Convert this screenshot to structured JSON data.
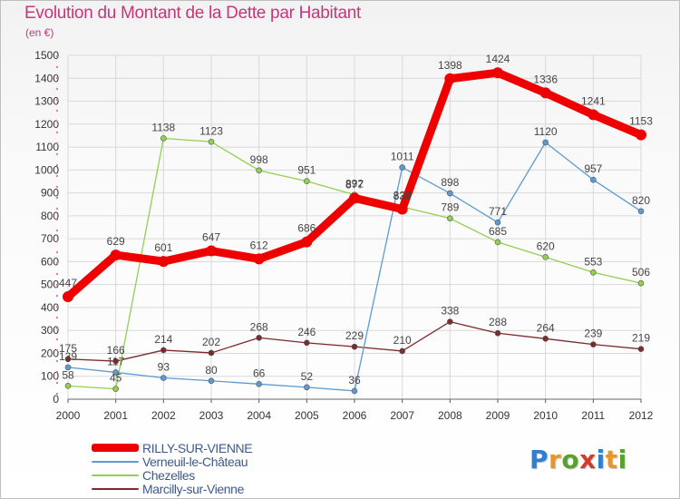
{
  "title": "Evolution du Montant de la Dette par Habitant",
  "unit": "(en €)",
  "brand": {
    "text": "Proxiti",
    "letter_colors": [
      "#2f7fd0",
      "#e8962a",
      "#5aa02c",
      "#d33c2c",
      "#2f7fd0",
      "#e8962a",
      "#5aa02c"
    ]
  },
  "chart_data": {
    "type": "line",
    "x": [
      "2000",
      "2001",
      "2002",
      "2003",
      "2004",
      "2005",
      "2006",
      "2007",
      "2008",
      "2009",
      "2010",
      "2011",
      "2012"
    ],
    "ylim": [
      0,
      1500
    ],
    "yticks": [
      0,
      100,
      200,
      300,
      400,
      500,
      600,
      700,
      800,
      900,
      1000,
      1100,
      1200,
      1300,
      1400,
      1500
    ],
    "grid": true,
    "legend_position": "bottom-left",
    "series": [
      {
        "name": "RILLY-SUR-VIENNE",
        "color": "#ee0000",
        "values": [
          447,
          629,
          601,
          647,
          612,
          686,
          877,
          829,
          1398,
          1424,
          1336,
          1241,
          1153
        ]
      },
      {
        "name": "Verneuil-le-Château",
        "color": "#5b9bd5",
        "values": [
          139,
          117,
          93,
          80,
          66,
          52,
          36,
          1011,
          898,
          771,
          1120,
          957,
          820
        ]
      },
      {
        "name": "Chezelles",
        "color": "#92d050",
        "values": [
          58,
          45,
          1138,
          1123,
          998,
          951,
          892,
          839,
          789,
          685,
          620,
          553,
          506
        ]
      },
      {
        "name": "Marcilly-sur-Vienne",
        "color": "#7b2b2b",
        "values": [
          175,
          166,
          214,
          202,
          268,
          246,
          229,
          210,
          338,
          288,
          264,
          239,
          219
        ]
      }
    ]
  }
}
